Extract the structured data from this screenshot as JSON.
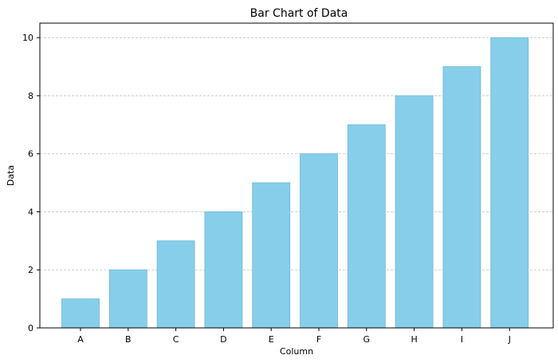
{
  "chart_data": {
    "type": "bar",
    "title": "Bar Chart of Data",
    "xlabel": "Column",
    "ylabel": "Data",
    "categories": [
      "A",
      "B",
      "C",
      "D",
      "E",
      "F",
      "G",
      "H",
      "I",
      "J"
    ],
    "values": [
      1,
      2,
      3,
      4,
      5,
      6,
      7,
      8,
      9,
      10
    ],
    "ylim": [
      0,
      10.5
    ],
    "yticks": [
      0,
      2,
      4,
      6,
      8,
      10
    ],
    "grid": "y-dashed",
    "bar_color": "#87CEEB",
    "bar_edge_color": "#6BB8D8",
    "grid_color": "#bfbfbf"
  }
}
